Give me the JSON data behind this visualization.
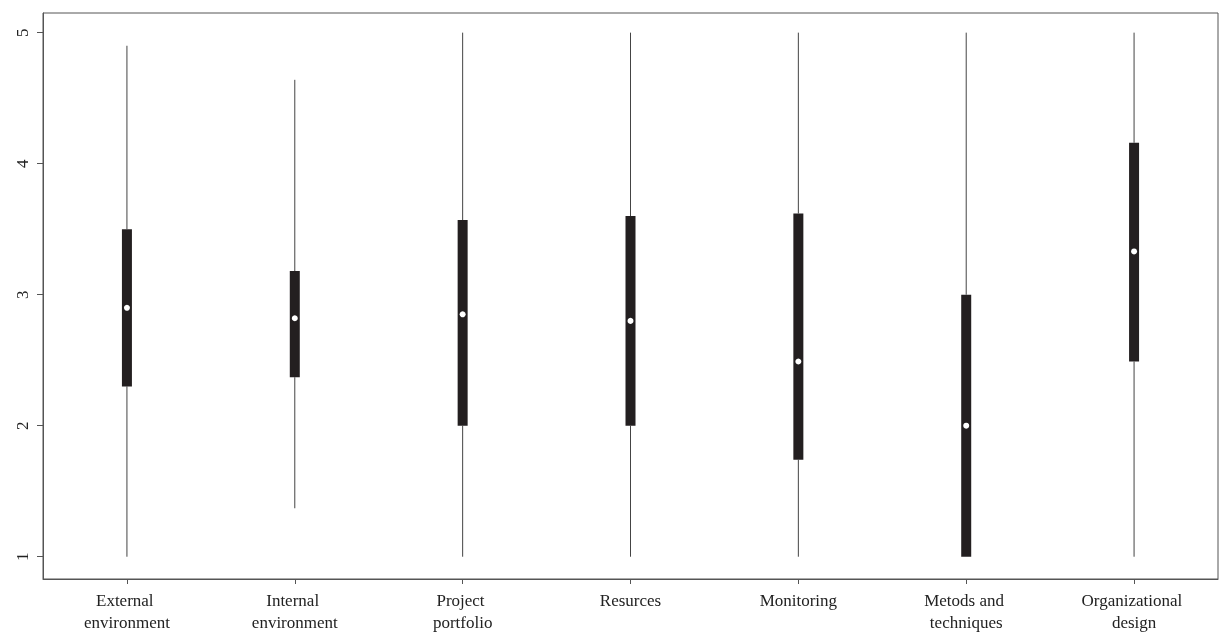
{
  "chart_data": {
    "type": "box",
    "categories": [
      "External environment",
      "Internal environment",
      "Project portfolio",
      "Resurces",
      "Monitoring",
      "Metods and techniques",
      "Organizational design"
    ],
    "boxes": [
      {
        "low": 1,
        "q1": 2.3,
        "median": 2.9,
        "q3": 3.5,
        "high": 4.9
      },
      {
        "low": 1.37,
        "q1": 2.37,
        "median": 2.82,
        "q3": 3.18,
        "high": 4.64
      },
      {
        "low": 1,
        "q1": 2,
        "median": 2.85,
        "q3": 3.57,
        "high": 5
      },
      {
        "low": 1,
        "q1": 2,
        "median": 2.8,
        "q3": 3.6,
        "high": 5
      },
      {
        "low": 1,
        "q1": 1.74,
        "median": 2.49,
        "q3": 3.62,
        "high": 5
      },
      {
        "low": 1,
        "q1": 1,
        "median": 2,
        "q3": 3,
        "high": 5
      },
      {
        "low": 1,
        "q1": 2.49,
        "median": 3.33,
        "q3": 4.16,
        "high": 5
      }
    ],
    "color": "#231f20",
    "ylim": [
      0.83,
      5.15
    ],
    "yticks": [
      1,
      2,
      3,
      4,
      5
    ],
    "grid": false
  }
}
